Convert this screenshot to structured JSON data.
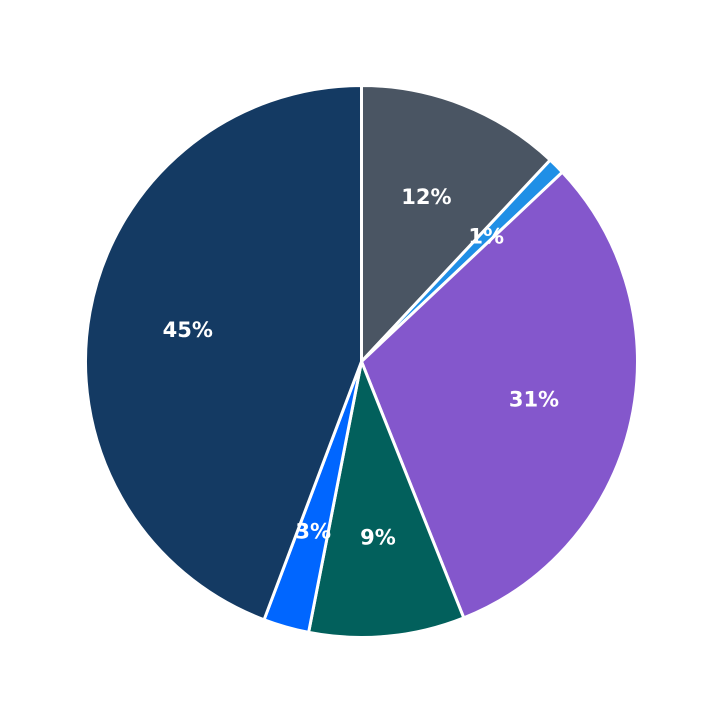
{
  "chart_data": {
    "type": "pie",
    "title": "",
    "start_angle_deg": 90,
    "direction": "clockwise",
    "slices": [
      {
        "label": "12%",
        "value": 12.1,
        "color": "#4a5563"
      },
      {
        "label": "1%",
        "value": 1.0,
        "color": "#1f8fe6"
      },
      {
        "label": "31%",
        "value": 31.3,
        "color": "#8457cc"
      },
      {
        "label": "9%",
        "value": 9.2,
        "color": "#02605c"
      },
      {
        "label": "3%",
        "value": 2.7,
        "color": "#0066ff"
      },
      {
        "label": "45%",
        "value": 44.7,
        "color": "#143a63"
      }
    ]
  }
}
